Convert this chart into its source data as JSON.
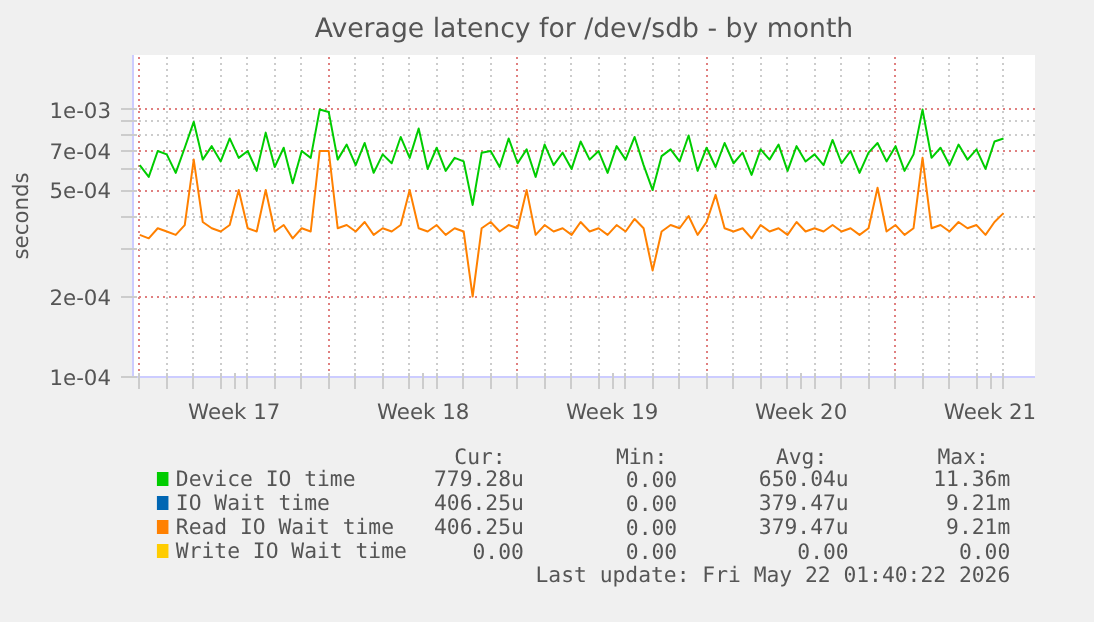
{
  "chart_data": {
    "type": "line",
    "title": "Average latency for /dev/sdb - by month",
    "ylabel": "seconds",
    "log": "y",
    "grid": true,
    "legend": "bottom",
    "marker": "none",
    "line_style": "solid",
    "xlim": [
      "2026-04-19T18:00",
      "2026-05-23T04:00"
    ],
    "ylim": [
      0.0001,
      0.0016
    ],
    "yticks": [
      {
        "value": 0.0001,
        "label": "1e-04"
      },
      {
        "value": 0.0002,
        "label": "2e-04"
      },
      {
        "value": 0.0003,
        "label": null
      },
      {
        "value": 0.0004,
        "label": null
      },
      {
        "value": 0.0005,
        "label": "5e-04"
      },
      {
        "value": 0.0006,
        "label": null
      },
      {
        "value": 0.0007,
        "label": "7e-04"
      },
      {
        "value": 0.0008,
        "label": null
      },
      {
        "value": 0.0009,
        "label": null
      },
      {
        "value": 0.001,
        "label": "1e-03"
      }
    ],
    "xticks": [
      {
        "value": "2026-04-23T12:00",
        "label": "Week 17"
      },
      {
        "value": "2026-04-30T12:00",
        "label": "Week 18"
      },
      {
        "value": "2026-05-07T12:00",
        "label": "Week 19"
      },
      {
        "value": "2026-05-14T12:00",
        "label": "Week 20"
      },
      {
        "value": "2026-05-21T12:00",
        "label": "Week 21"
      },
      {
        "value": "2026-04-20",
        "label": null
      },
      {
        "value": "2026-04-21",
        "label": null
      },
      {
        "value": "2026-04-22",
        "label": null
      },
      {
        "value": "2026-04-23",
        "label": null
      },
      {
        "value": "2026-04-24",
        "label": null
      },
      {
        "value": "2026-04-25",
        "label": null
      },
      {
        "value": "2026-04-26",
        "label": null
      },
      {
        "value": "2026-04-27",
        "label": null
      },
      {
        "value": "2026-04-28",
        "label": null
      },
      {
        "value": "2026-04-29",
        "label": null
      },
      {
        "value": "2026-04-30",
        "label": null
      },
      {
        "value": "2026-05-01",
        "label": null
      },
      {
        "value": "2026-05-02",
        "label": null
      },
      {
        "value": "2026-05-03",
        "label": null
      },
      {
        "value": "2026-05-04",
        "label": null
      },
      {
        "value": "2026-05-05",
        "label": null
      },
      {
        "value": "2026-05-06",
        "label": null
      },
      {
        "value": "2026-05-07",
        "label": null
      },
      {
        "value": "2026-05-08",
        "label": null
      },
      {
        "value": "2026-05-09",
        "label": null
      },
      {
        "value": "2026-05-10",
        "label": null
      },
      {
        "value": "2026-05-11",
        "label": null
      },
      {
        "value": "2026-05-12",
        "label": null
      },
      {
        "value": "2026-05-13",
        "label": null
      },
      {
        "value": "2026-05-14",
        "label": null
      },
      {
        "value": "2026-05-15",
        "label": null
      },
      {
        "value": "2026-05-16",
        "label": null
      },
      {
        "value": "2026-05-17",
        "label": null
      },
      {
        "value": "2026-05-18",
        "label": null
      },
      {
        "value": "2026-05-19",
        "label": null
      },
      {
        "value": "2026-05-20",
        "label": null
      },
      {
        "value": "2026-05-21",
        "label": null
      },
      {
        "value": "2026-05-22",
        "label": null
      }
    ],
    "x": [
      "2026-04-20T00:00",
      "2026-04-20T08:00",
      "2026-04-20T16:00",
      "2026-04-21T00:00",
      "2026-04-21T08:00",
      "2026-04-21T16:00",
      "2026-04-22T00:00",
      "2026-04-22T08:00",
      "2026-04-22T16:00",
      "2026-04-23T00:00",
      "2026-04-23T08:00",
      "2026-04-23T16:00",
      "2026-04-24T00:00",
      "2026-04-24T08:00",
      "2026-04-24T16:00",
      "2026-04-25T00:00",
      "2026-04-25T08:00",
      "2026-04-25T16:00",
      "2026-04-26T00:00",
      "2026-04-26T08:00",
      "2026-04-26T16:00",
      "2026-04-27T00:00",
      "2026-04-27T08:00",
      "2026-04-27T16:00",
      "2026-04-28T00:00",
      "2026-04-28T08:00",
      "2026-04-28T16:00",
      "2026-04-29T00:00",
      "2026-04-29T08:00",
      "2026-04-29T16:00",
      "2026-04-30T00:00",
      "2026-04-30T08:00",
      "2026-04-30T16:00",
      "2026-05-01T00:00",
      "2026-05-01T08:00",
      "2026-05-01T16:00",
      "2026-05-02T00:00",
      "2026-05-02T08:00",
      "2026-05-02T16:00",
      "2026-05-03T00:00",
      "2026-05-03T08:00",
      "2026-05-03T16:00",
      "2026-05-04T00:00",
      "2026-05-04T08:00",
      "2026-05-04T16:00",
      "2026-05-05T00:00",
      "2026-05-05T08:00",
      "2026-05-05T16:00",
      "2026-05-06T00:00",
      "2026-05-06T08:00",
      "2026-05-06T16:00",
      "2026-05-07T00:00",
      "2026-05-07T08:00",
      "2026-05-07T16:00",
      "2026-05-08T00:00",
      "2026-05-08T08:00",
      "2026-05-08T16:00",
      "2026-05-09T00:00",
      "2026-05-09T08:00",
      "2026-05-09T16:00",
      "2026-05-10T00:00",
      "2026-05-10T08:00",
      "2026-05-10T16:00",
      "2026-05-11T00:00",
      "2026-05-11T08:00",
      "2026-05-11T16:00",
      "2026-05-12T00:00",
      "2026-05-12T08:00",
      "2026-05-12T16:00",
      "2026-05-13T00:00",
      "2026-05-13T08:00",
      "2026-05-13T16:00",
      "2026-05-14T00:00",
      "2026-05-14T08:00",
      "2026-05-14T16:00",
      "2026-05-15T00:00",
      "2026-05-15T08:00",
      "2026-05-15T16:00",
      "2026-05-16T00:00",
      "2026-05-16T08:00",
      "2026-05-16T16:00",
      "2026-05-17T00:00",
      "2026-05-17T08:00",
      "2026-05-17T16:00",
      "2026-05-18T00:00",
      "2026-05-18T08:00",
      "2026-05-18T16:00",
      "2026-05-19T00:00",
      "2026-05-19T08:00",
      "2026-05-19T16:00",
      "2026-05-20T00:00",
      "2026-05-20T08:00",
      "2026-05-20T16:00",
      "2026-05-21T00:00",
      "2026-05-21T08:00",
      "2026-05-21T16:00",
      "2026-05-22T00:00"
    ],
    "series": [
      {
        "name": "Device IO time",
        "color": "#00cc00",
        "values": [
          0.00062,
          0.00056,
          0.0007,
          0.00068,
          0.00058,
          0.00072,
          0.0009,
          0.00065,
          0.00073,
          0.00064,
          0.00078,
          0.00066,
          0.0007,
          0.00059,
          0.00082,
          0.00061,
          0.00072,
          0.00053,
          0.0007,
          0.00066,
          0.001,
          0.00098,
          0.00065,
          0.00074,
          0.00062,
          0.00075,
          0.00058,
          0.00068,
          0.00063,
          0.00079,
          0.00066,
          0.00085,
          0.0006,
          0.00072,
          0.00059,
          0.00066,
          0.00064,
          0.00044,
          0.00069,
          0.0007,
          0.00061,
          0.00078,
          0.00063,
          0.00071,
          0.00056,
          0.00074,
          0.00062,
          0.00069,
          0.0006,
          0.00076,
          0.00065,
          0.0007,
          0.00058,
          0.00073,
          0.00065,
          0.00079,
          0.00062,
          0.0005,
          0.00067,
          0.00071,
          0.00064,
          0.0008,
          0.00059,
          0.00072,
          0.00061,
          0.00075,
          0.00063,
          0.00069,
          0.00057,
          0.00071,
          0.00065,
          0.00074,
          0.00059,
          0.00073,
          0.00064,
          0.00068,
          0.00062,
          0.00077,
          0.00063,
          0.0007,
          0.00058,
          0.00069,
          0.00075,
          0.00064,
          0.00073,
          0.00059,
          0.00068,
          0.001,
          0.00066,
          0.00072,
          0.00062,
          0.00074,
          0.00065,
          0.00071,
          0.0006,
          0.00076,
          0.00078
        ]
      },
      {
        "name": "IO Wait time",
        "color": "#0066b3",
        "values": [
          null,
          null,
          null,
          null,
          null,
          null,
          null,
          null,
          null,
          null,
          null,
          null,
          null,
          null,
          null,
          null,
          null,
          null,
          null,
          null,
          null,
          null,
          null,
          null,
          null,
          null,
          null,
          null,
          null,
          null,
          null,
          null,
          null,
          null,
          null,
          null,
          null,
          null,
          null,
          null,
          null,
          null,
          null,
          null,
          null,
          null,
          null,
          null,
          null,
          null,
          null,
          null,
          null,
          null,
          null,
          null,
          null,
          null,
          null,
          null,
          null,
          null,
          null,
          null,
          null,
          null,
          null,
          null,
          null,
          null,
          null,
          null,
          null,
          null,
          null,
          null,
          null,
          null,
          null,
          null,
          null,
          null,
          null,
          null,
          null,
          null,
          null,
          null,
          null,
          null,
          null,
          null,
          null,
          null,
          null,
          null,
          null
        ]
      },
      {
        "name": "Read IO Wait time",
        "color": "#ff8000",
        "values": [
          0.00034,
          0.00033,
          0.00036,
          0.00035,
          0.00034,
          0.00037,
          0.00065,
          0.00038,
          0.00036,
          0.00035,
          0.00037,
          0.0005,
          0.00036,
          0.00035,
          0.0005,
          0.00035,
          0.00037,
          0.00033,
          0.00036,
          0.00035,
          0.0007,
          0.0007,
          0.00036,
          0.00037,
          0.00035,
          0.00038,
          0.00034,
          0.00036,
          0.00035,
          0.00037,
          0.0005,
          0.00036,
          0.00035,
          0.00037,
          0.00034,
          0.00036,
          0.00035,
          0.0002,
          0.00036,
          0.00038,
          0.00035,
          0.00037,
          0.00036,
          0.0005,
          0.00034,
          0.00037,
          0.00035,
          0.00036,
          0.00034,
          0.00038,
          0.00035,
          0.00036,
          0.00034,
          0.00037,
          0.00035,
          0.00039,
          0.00036,
          0.00025,
          0.00035,
          0.00037,
          0.00036,
          0.0004,
          0.00034,
          0.00038,
          0.00048,
          0.00036,
          0.00035,
          0.00036,
          0.00033,
          0.00037,
          0.00035,
          0.00036,
          0.00034,
          0.00038,
          0.00035,
          0.00036,
          0.00035,
          0.00037,
          0.00035,
          0.00036,
          0.00034,
          0.00036,
          0.00051,
          0.00035,
          0.00037,
          0.00034,
          0.00036,
          0.00066,
          0.00036,
          0.00037,
          0.00035,
          0.00038,
          0.00036,
          0.00037,
          0.00034,
          0.00038,
          0.00041
        ]
      },
      {
        "name": "Write IO Wait time",
        "color": "#ffcc00",
        "values": [
          null,
          null,
          null,
          null,
          null,
          null,
          null,
          null,
          null,
          null,
          null,
          null,
          null,
          null,
          null,
          null,
          null,
          null,
          null,
          null,
          null,
          null,
          null,
          null,
          null,
          null,
          null,
          null,
          null,
          null,
          null,
          null,
          null,
          null,
          null,
          null,
          null,
          null,
          null,
          null,
          null,
          null,
          null,
          null,
          null,
          null,
          null,
          null,
          null,
          null,
          null,
          null,
          null,
          null,
          null,
          null,
          null,
          null,
          null,
          null,
          null,
          null,
          null,
          null,
          null,
          null,
          null,
          null,
          null,
          null,
          null,
          null,
          null,
          null,
          null,
          null,
          null,
          null,
          null,
          null,
          null,
          null,
          null,
          null,
          null,
          null,
          null,
          null,
          null,
          null,
          null,
          null,
          null,
          null,
          null,
          null,
          null
        ]
      }
    ],
    "annotations": [
      "Cur:",
      "Min:",
      "Avg:",
      "Max:",
      "779.28u",
      "0.00",
      "650.04u",
      "11.36m",
      "406.25u",
      "0.00",
      "379.47u",
      "9.21m",
      "406.25u",
      "0.00",
      "379.47u",
      "9.21m",
      "0.00",
      "0.00",
      "0.00",
      "0.00",
      "Last update: Fri May 22 01:40:22 2026"
    ]
  }
}
